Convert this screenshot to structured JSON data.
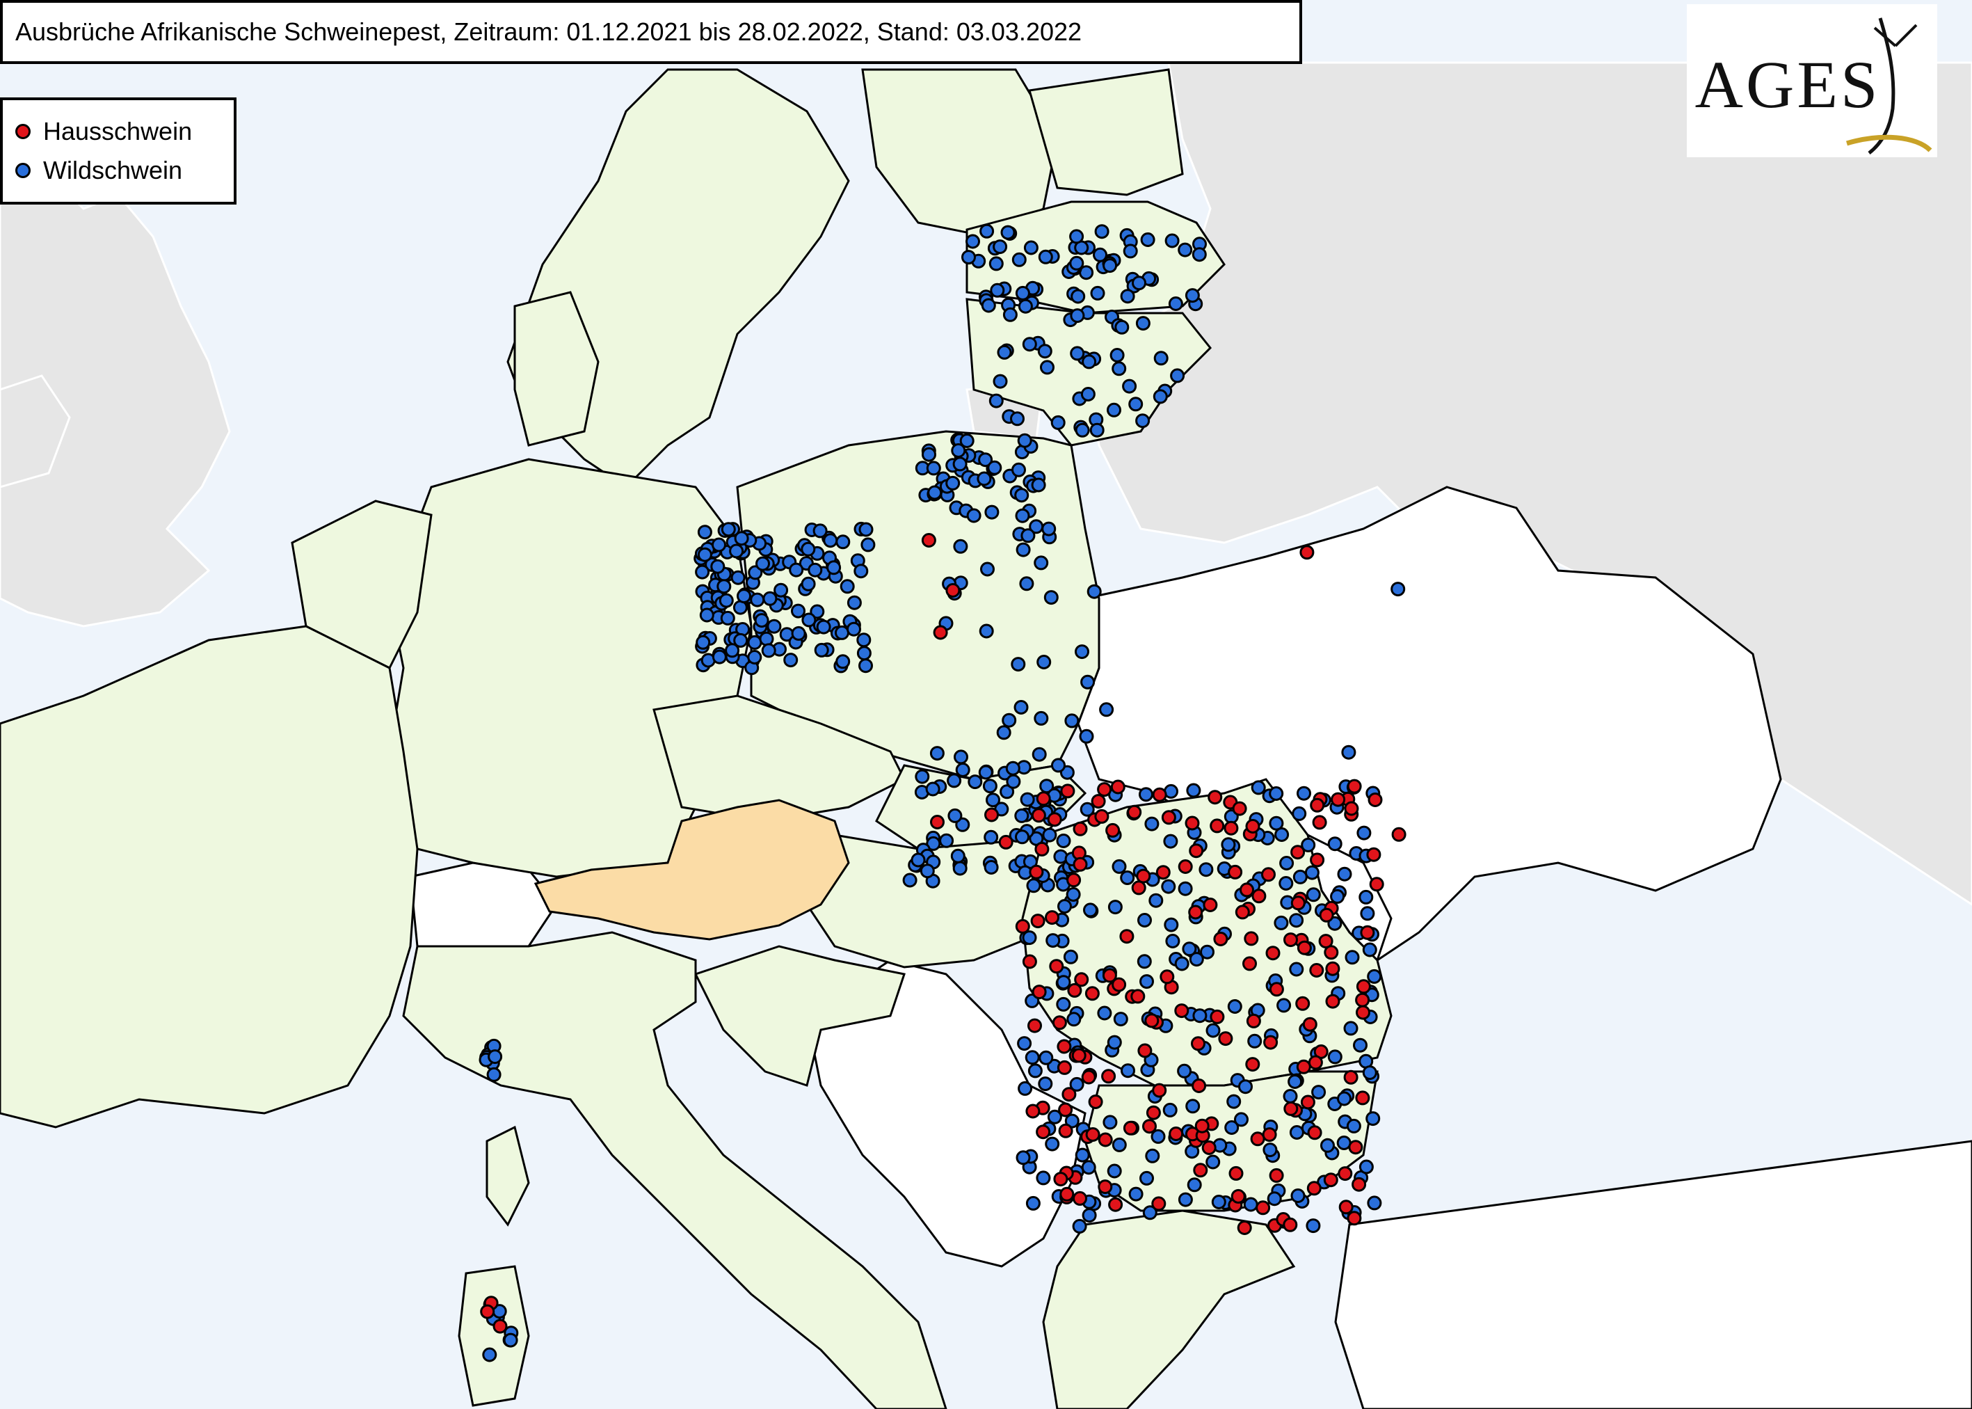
{
  "title": "Ausbrüche Afrikanische Schweinepest, Zeitraum: 01.12.2021 bis 28.02.2022, Stand: 03.03.2022",
  "legend": {
    "items": [
      {
        "label": "Hausschwein",
        "color": "#e0141b"
      },
      {
        "label": "Wildschwein",
        "color": "#2a6fdb"
      }
    ]
  },
  "logo": {
    "text": "AGES"
  },
  "colors": {
    "sea": "#eef4fb",
    "affected_country": "#eef8df",
    "austria": "#fbdca6",
    "unaffected_country": "#ffffff",
    "non_eu": "#e6e6e6",
    "border": "#000000",
    "logo_accent": "#c9a227"
  },
  "map": {
    "type": "outbreak-map",
    "region": "Europe",
    "highlighted_country": "Österreich",
    "country_fill_classes": [
      "affected",
      "austria",
      "unaffected",
      "non-eu"
    ],
    "outbreak_clusters": [
      {
        "area": "Lettland",
        "type": "Wildschwein",
        "count": 60
      },
      {
        "area": "Litauen",
        "type": "Wildschwein",
        "count": 40
      },
      {
        "area": "Polen Nordost",
        "type": "Wildschwein",
        "count": 45
      },
      {
        "area": "Polen Ost",
        "type": "Wildschwein",
        "count": 30
      },
      {
        "area": "Polen West",
        "type": "Wildschwein",
        "count": 120
      },
      {
        "area": "Deutschland",
        "type": "Wildschwein",
        "count": 30
      },
      {
        "area": "Slowakei",
        "type": "Wildschwein",
        "count": 55
      },
      {
        "area": "Ungarn",
        "type": "Wildschwein",
        "count": 8
      },
      {
        "area": "Rumänien",
        "type": "Wildschwein",
        "count": 260
      },
      {
        "area": "Rumänien",
        "type": "Hausschwein",
        "count": 170
      },
      {
        "area": "Italien Nord",
        "type": "Wildschwein",
        "count": 8
      },
      {
        "area": "Sardinien",
        "type": "Wildschwein",
        "count": 8
      },
      {
        "area": "Sardinien",
        "type": "Hausschwein",
        "count": 3
      },
      {
        "area": "Ukraine",
        "type": "Wildschwein",
        "count": 2
      },
      {
        "area": "Ukraine",
        "type": "Hausschwein",
        "count": 2
      },
      {
        "area": "Polen",
        "type": "Hausschwein",
        "count": 3
      },
      {
        "area": "Slowakei",
        "type": "Hausschwein",
        "count": 5
      }
    ]
  }
}
